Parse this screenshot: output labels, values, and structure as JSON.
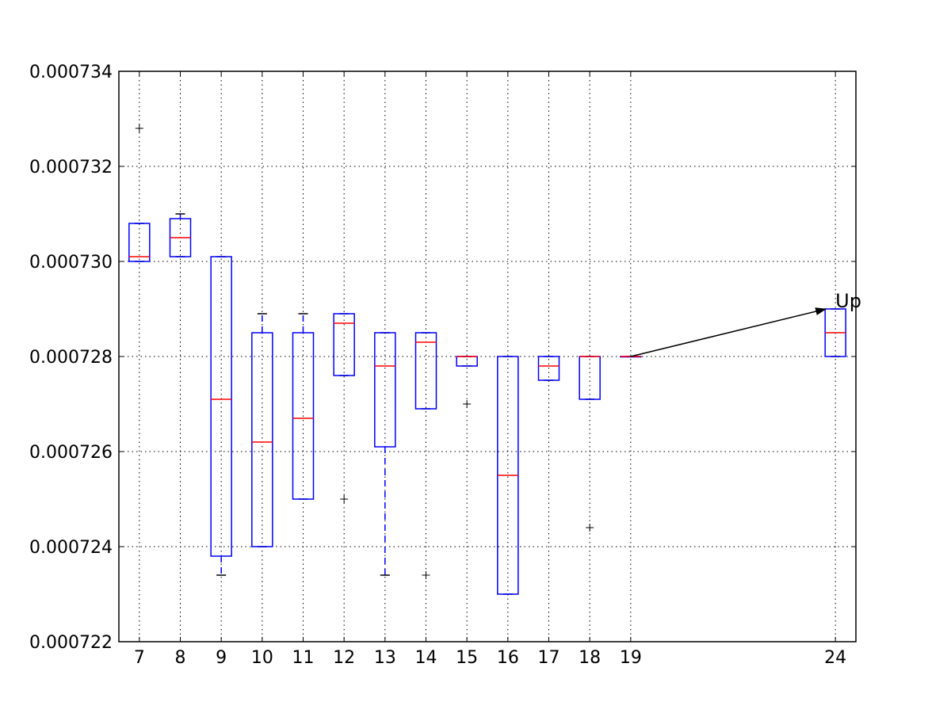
{
  "chart_data": {
    "type": "box",
    "title": "",
    "xlabel": "",
    "ylabel": "",
    "xlim": [
      6.5,
      24.5
    ],
    "ylim": [
      0.000722,
      0.000734
    ],
    "grid": true,
    "x_ticks": [
      7,
      8,
      9,
      10,
      11,
      12,
      13,
      14,
      15,
      16,
      17,
      18,
      19,
      24
    ],
    "y_ticks": [
      0.000722,
      0.000724,
      0.000726,
      0.000728,
      0.00073,
      0.000732,
      0.000734
    ],
    "y_tick_labels": [
      "0.000722",
      "0.000724",
      "0.000726",
      "0.000728",
      "0.000730",
      "0.000732",
      "0.000734"
    ],
    "boxes": [
      {
        "x": 7,
        "whisker_low": 0.00073,
        "q1": 0.00073,
        "median": 0.0007301,
        "q3": 0.0007308,
        "whisker_high": 0.0007308,
        "outliers": [
          0.0007328
        ]
      },
      {
        "x": 8,
        "whisker_low": 0.0007301,
        "q1": 0.0007301,
        "median": 0.0007305,
        "q3": 0.0007309,
        "whisker_high": 0.000731,
        "outliers": []
      },
      {
        "x": 9,
        "whisker_low": 0.0007234,
        "q1": 0.0007238,
        "median": 0.0007271,
        "q3": 0.0007301,
        "whisker_high": 0.0007301,
        "outliers": []
      },
      {
        "x": 10,
        "whisker_low": 0.000724,
        "q1": 0.000724,
        "median": 0.0007262,
        "q3": 0.0007285,
        "whisker_high": 0.0007289,
        "outliers": []
      },
      {
        "x": 11,
        "whisker_low": 0.000725,
        "q1": 0.000725,
        "median": 0.0007267,
        "q3": 0.0007285,
        "whisker_high": 0.0007289,
        "outliers": []
      },
      {
        "x": 12,
        "whisker_low": 0.0007276,
        "q1": 0.0007276,
        "median": 0.0007287,
        "q3": 0.0007289,
        "whisker_high": 0.0007289,
        "outliers": [
          0.000725
        ]
      },
      {
        "x": 13,
        "whisker_low": 0.0007234,
        "q1": 0.0007261,
        "median": 0.0007278,
        "q3": 0.0007285,
        "whisker_high": 0.0007285,
        "outliers": []
      },
      {
        "x": 14,
        "whisker_low": 0.0007269,
        "q1": 0.0007269,
        "median": 0.0007283,
        "q3": 0.0007285,
        "whisker_high": 0.0007285,
        "outliers": [
          0.0007234
        ]
      },
      {
        "x": 15,
        "whisker_low": 0.0007278,
        "q1": 0.0007278,
        "median": 0.000728,
        "q3": 0.000728,
        "whisker_high": 0.000728,
        "outliers": [
          0.000727
        ]
      },
      {
        "x": 16,
        "whisker_low": 0.000723,
        "q1": 0.000723,
        "median": 0.0007255,
        "q3": 0.000728,
        "whisker_high": 0.000728,
        "outliers": []
      },
      {
        "x": 17,
        "whisker_low": 0.0007275,
        "q1": 0.0007275,
        "median": 0.0007278,
        "q3": 0.000728,
        "whisker_high": 0.000728,
        "outliers": []
      },
      {
        "x": 18,
        "whisker_low": 0.0007271,
        "q1": 0.0007271,
        "median": 0.000728,
        "q3": 0.000728,
        "whisker_high": 0.000728,
        "outliers": [
          0.0007244
        ]
      },
      {
        "x": 19,
        "whisker_low": 0.000728,
        "q1": 0.000728,
        "median": 0.000728,
        "q3": 0.000728,
        "whisker_high": 0.000728,
        "outliers": []
      },
      {
        "x": 24,
        "whisker_low": 0.000728,
        "q1": 0.000728,
        "median": 0.0007285,
        "q3": 0.000729,
        "whisker_high": 0.000729,
        "outliers": []
      }
    ],
    "annotations": [
      {
        "text": "Up",
        "from": [
          19,
          0.000728
        ],
        "to": [
          24,
          0.000729
        ]
      }
    ],
    "colors": {
      "box": "#0000ff",
      "median": "#ff0000",
      "outlier": "#000000",
      "cap": "#000000",
      "grid": "#000000",
      "axes": "#000000"
    }
  }
}
